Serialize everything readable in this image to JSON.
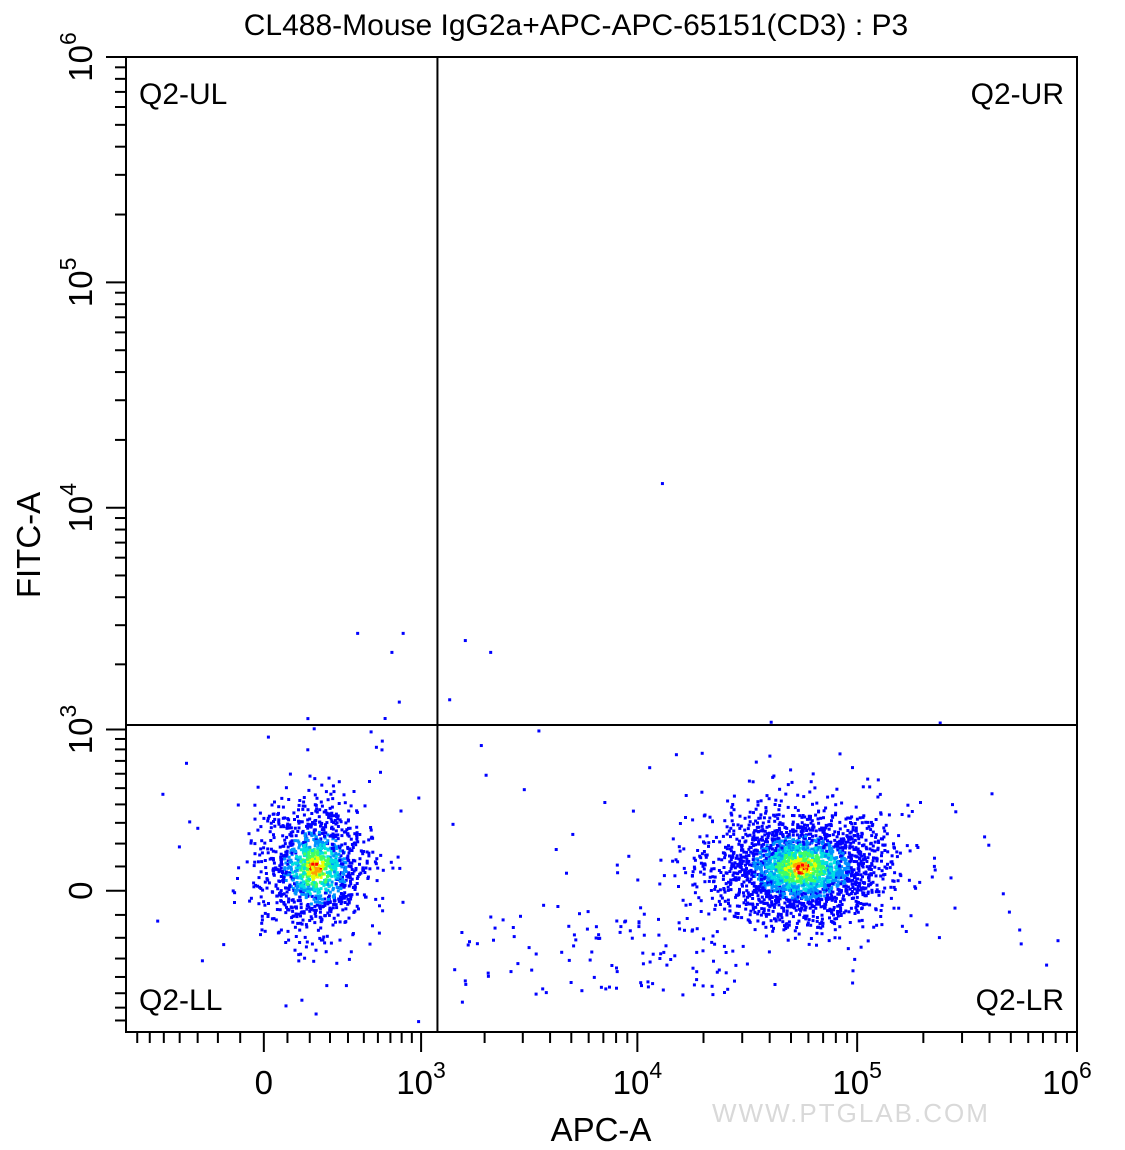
{
  "chart_data": {
    "type": "scatter",
    "title": "CL488-Mouse IgG2a+APC-APC-65151(CD3) : P3",
    "xlabel": "APC-A",
    "ylabel": "FITC-A",
    "x_scale": "biexponential",
    "y_scale": "biexponential",
    "xlim": [
      -800,
      1000000
    ],
    "ylim": [
      -800,
      1000000
    ],
    "x_ticks": [
      {
        "value": 0,
        "base": "0",
        "exp": ""
      },
      {
        "value": 1000,
        "base": "10",
        "exp": "3"
      },
      {
        "value": 10000,
        "base": "10",
        "exp": "4"
      },
      {
        "value": 100000,
        "base": "10",
        "exp": "5"
      },
      {
        "value": 1000000,
        "base": "10",
        "exp": "6"
      }
    ],
    "y_ticks": [
      {
        "value": 0,
        "base": "0",
        "exp": ""
      },
      {
        "value": 1000,
        "base": "10",
        "exp": "3"
      },
      {
        "value": 10000,
        "base": "10",
        "exp": "4"
      },
      {
        "value": 100000,
        "base": "10",
        "exp": "5"
      },
      {
        "value": 1000000,
        "base": "10",
        "exp": "6"
      }
    ],
    "quadrant_gate": {
      "x": 1200,
      "y": 1050
    },
    "quadrant_labels": {
      "upper_left": "Q2-UL",
      "upper_right": "Q2-UR",
      "lower_left": "Q2-LL",
      "lower_right": "Q2-LR"
    },
    "populations": [
      {
        "x_center": 220,
        "y_center": 100,
        "count": 1300
      },
      {
        "x_center": 55000,
        "y_center": 100,
        "count": 2600
      }
    ],
    "density_colors": [
      "#0000ff",
      "#0090ff",
      "#00e0e0",
      "#40ff60",
      "#e8ff00",
      "#ffa000",
      "#ff0000"
    ],
    "grid": false,
    "legend": "none"
  },
  "watermark": "WWW.PTGLAB.COM"
}
